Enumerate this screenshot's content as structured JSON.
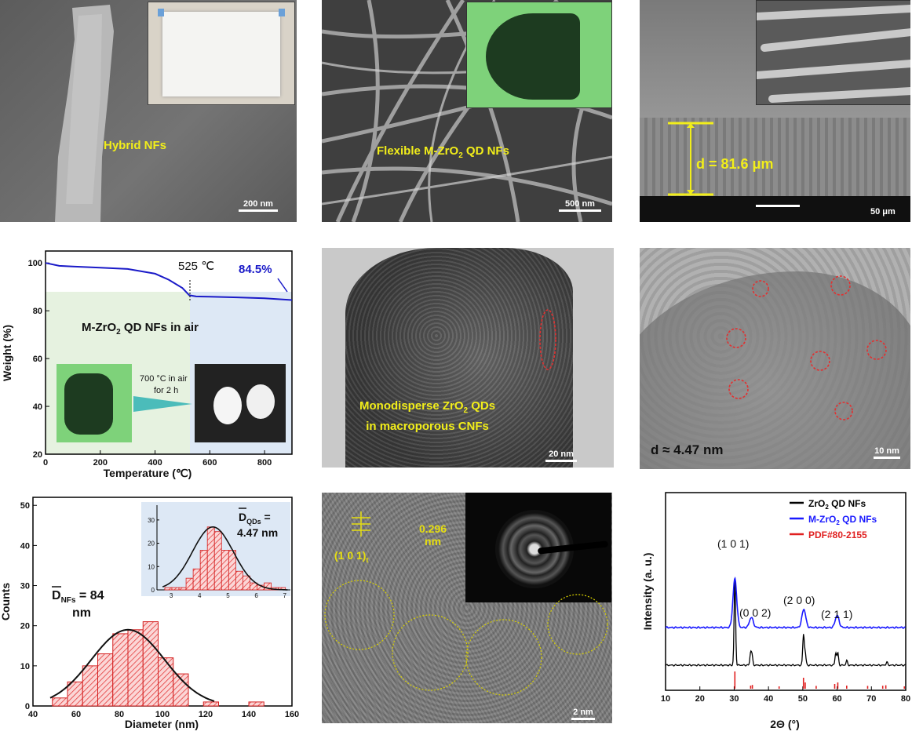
{
  "panels": {
    "a": {
      "label": "Hybrid NFs",
      "scale": "200 nm"
    },
    "b": {
      "label_prefix": "Flexible M-ZrO",
      "label_sub": "2",
      "label_suffix": " QD NFs",
      "scale": "500 nm"
    },
    "c": {
      "label": "d = 81.6 μm",
      "scale": "50 μm"
    },
    "e": {
      "line1_prefix": "Monodisperse ZrO",
      "line1_sub": "2",
      "line1_suffix": " QDs",
      "line2": "in macroporous CNFs",
      "scale": "20 nm"
    },
    "f": {
      "label": "d ≈ 4.47 nm",
      "scale": "10 nm"
    },
    "h": {
      "spacing_line1": "0.296",
      "spacing_line2": "nm",
      "plane": "(1 0 1)",
      "plane_sub": "t",
      "scale": "2 nm"
    }
  },
  "tga": {
    "ylabel": "Weight (%)",
    "xlabel": "Temperature (℃)",
    "annotation_temp": "525 ℃",
    "annotation_pct": "84.5%",
    "box_title_prefix": "M-ZrO",
    "box_title_sub": "2",
    "box_title_suffix": " QD NFs in air",
    "arrow_line1": "700 °C in air",
    "arrow_line2": "for 2 h",
    "xticks": [
      "0",
      "200",
      "400",
      "600",
      "800"
    ],
    "yticks": [
      "20",
      "40",
      "60",
      "80",
      "100"
    ]
  },
  "hist": {
    "ylabel": "Counts",
    "xlabel": "Diameter (nm)",
    "main_label_D": "D",
    "main_label_sub": "NFs",
    "main_label_val": " = 84",
    "main_label_unit": "nm",
    "inset_label_D": "D",
    "inset_label_sub": "QDs",
    "inset_label_val": " =",
    "inset_label_line2": "4.47 nm",
    "xticks": [
      "40",
      "60",
      "80",
      "100",
      "120",
      "140",
      "160"
    ],
    "yticks": [
      "0",
      "10",
      "20",
      "30",
      "40",
      "50"
    ],
    "inset_xticks": [
      "3",
      "4",
      "5",
      "6",
      "7"
    ],
    "inset_yticks": [
      "0",
      "10",
      "20",
      "30"
    ]
  },
  "xrd": {
    "ylabel": "Intensity (a. u.)",
    "xlabel": "2Θ (°)",
    "xticks": [
      "10",
      "20",
      "30",
      "40",
      "50",
      "60",
      "70",
      "80"
    ],
    "legend": [
      {
        "text_prefix": "ZrO",
        "text_sub": "2",
        "text_suffix": " QD NFs",
        "color": "#000000"
      },
      {
        "text_prefix": "M-ZrO",
        "text_sub": "2",
        "text_suffix": " QD NFs",
        "color": "#1a1aff"
      },
      {
        "text_prefix": "PDF#80-2155",
        "text_sub": "",
        "text_suffix": "",
        "color": "#e02020"
      }
    ],
    "peaks": [
      "(1 0 1)",
      "(0 0 2)",
      "(2 0 0)",
      "(2 1 1)"
    ]
  },
  "chart_data": [
    {
      "type": "line",
      "xlabel": "Temperature (℃)",
      "ylabel": "Weight (%)",
      "xlim": [
        0,
        900
      ],
      "ylim": [
        20,
        105
      ],
      "x": [
        0,
        50,
        100,
        200,
        300,
        400,
        450,
        500,
        525,
        550,
        600,
        700,
        800,
        900
      ],
      "y": [
        100,
        98.8,
        98.5,
        98,
        97.5,
        95.5,
        93,
        89.5,
        86.5,
        86,
        85.9,
        85.6,
        85.2,
        84.5
      ]
    },
    {
      "type": "bar",
      "xlabel": "Diameter (nm)",
      "ylabel": "Counts",
      "xlim": [
        40,
        160
      ],
      "ylim": [
        0,
        52
      ],
      "bin_width": 7,
      "categories": [
        52.5,
        59.5,
        66.5,
        73.5,
        80.5,
        87.5,
        94.5,
        101.5,
        108.5,
        115.5,
        122.5,
        129.5,
        136.5,
        143.5
      ],
      "values": [
        2,
        6,
        10,
        13,
        18,
        19,
        21,
        12,
        8,
        0,
        1,
        0,
        0,
        1
      ],
      "fit_mean": 84,
      "fit_peak": 19
    },
    {
      "type": "bar",
      "inset": true,
      "xlim": [
        2.5,
        7.2
      ],
      "ylim": [
        0,
        35
      ],
      "bin_width": 0.25,
      "categories": [
        2.9,
        3.15,
        3.4,
        3.65,
        3.9,
        4.15,
        4.4,
        4.65,
        4.9,
        5.15,
        5.4,
        5.65,
        5.9,
        6.15,
        6.4,
        6.65,
        6.9
      ],
      "values": [
        1,
        1,
        1,
        5,
        9,
        17,
        27,
        25,
        17,
        17,
        8,
        6,
        3,
        2,
        3,
        1,
        1
      ],
      "fit_mean": 4.47,
      "fit_peak": 27
    },
    {
      "type": "line",
      "xlabel": "2Θ (°)",
      "ylabel": "Intensity (a. u.)",
      "xlim": [
        10,
        80
      ],
      "series": [
        {
          "name": "ZrO2 QD NFs",
          "x": [
            30.2,
            34.8,
            35.2,
            50.2,
            50.7,
            59.6,
            60.2,
            62.8,
            74.5
          ],
          "y": [
            28,
            4,
            3,
            10,
            4,
            4,
            4,
            1.5,
            1
          ]
        },
        {
          "name": "M-ZrO2 QD NFs",
          "x": [
            30.2,
            35.0,
            50.3,
            60.0
          ],
          "y": [
            12,
            2.5,
            4.5,
            3
          ]
        },
        {
          "name": "PDF#80-2155",
          "x": [
            30.2,
            34.8,
            35.3,
            43.1,
            50.2,
            50.7,
            53.9,
            59.3,
            60.2,
            62.8,
            68.9,
            73.3,
            74.2,
            79.6
          ],
          "y": [
            100,
            10,
            14,
            5,
            60,
            30,
            8,
            20,
            30,
            10,
            8,
            9,
            12,
            5
          ]
        }
      ]
    }
  ]
}
